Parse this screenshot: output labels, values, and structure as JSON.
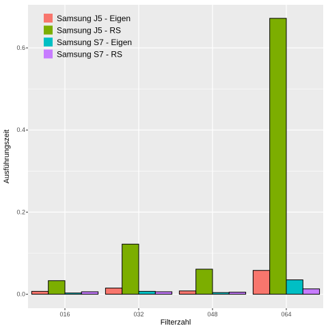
{
  "chart_data": {
    "type": "bar",
    "xlabel": "Filterzahl",
    "ylabel": "Ausführungszeit",
    "categories": [
      "016",
      "032",
      "048",
      "064"
    ],
    "ylim": [
      -0.034,
      0.705
    ],
    "yticks": [
      0.0,
      0.2,
      0.4,
      0.6
    ],
    "ytick_labels": [
      "0.0",
      "0.2",
      "0.4",
      "0.6"
    ],
    "grid": true,
    "legend_position": "top-left",
    "panel_background": "#ebebeb",
    "series": [
      {
        "name": "Samsung J5 - Eigen",
        "color": "#f8766d",
        "values": [
          0.007,
          0.015,
          0.008,
          0.058
        ]
      },
      {
        "name": "Samsung J5 - RS",
        "color": "#7cae00",
        "values": [
          0.033,
          0.122,
          0.061,
          0.672
        ]
      },
      {
        "name": "Samsung S7 - Eigen",
        "color": "#00bfc4",
        "values": [
          0.003,
          0.007,
          0.004,
          0.035
        ]
      },
      {
        "name": "Samsung S7 - RS",
        "color": "#c77cff",
        "values": [
          0.006,
          0.006,
          0.005,
          0.013
        ]
      }
    ]
  }
}
